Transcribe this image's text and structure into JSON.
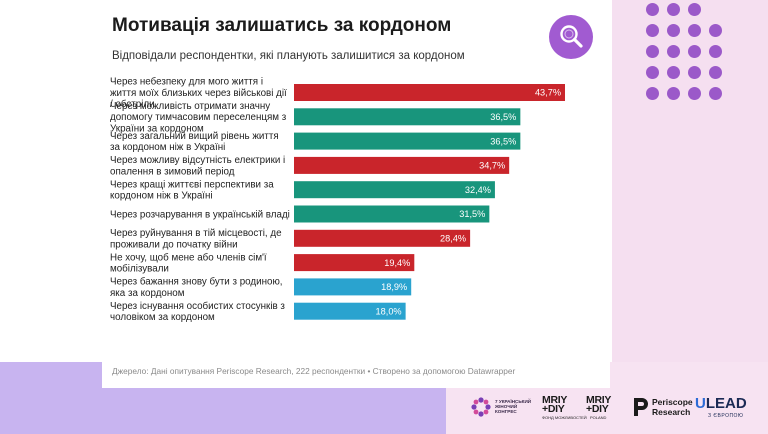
{
  "header": {
    "title": "Мотивація залишатись за кордоном",
    "subtitle": "Відповідали респондентки, які планують залишитися за кордоном"
  },
  "chart_data": {
    "type": "bar",
    "orientation": "horizontal",
    "xlim": [
      0,
      43.7
    ],
    "categories": [
      [
        "Через небезпеку для мого життя і",
        "життя моїх близьких через військові дії",
        "/ обстріли"
      ],
      [
        "Через можливість отримати значну",
        "допомогу тимчасовим переселенцям з",
        "України за кордоном"
      ],
      [
        "Через загальний вищий рівень життя",
        "за кордоном ніж в Україні"
      ],
      [
        "Через можливу відсутність електрики і",
        "опалення в зимовий період"
      ],
      [
        "Через кращі життєві перспективи за",
        "кордоном ніж в Україні"
      ],
      [
        "Через розчарування в українській владі"
      ],
      [
        "Через руйнування в тій місцевості, де",
        "проживали до початку війни"
      ],
      [
        "Не хочу, щоб мене або членів сім'ї",
        "мобілізували"
      ],
      [
        "Через бажання знову бути з родиною,",
        "яка за кордоном"
      ],
      [
        "Через існування особистих стосунків з",
        "чоловіком за кордоном"
      ]
    ],
    "values": [
      43.7,
      36.5,
      36.5,
      34.7,
      32.4,
      31.5,
      28.4,
      19.4,
      18.9,
      18.0
    ],
    "value_labels": [
      "43,7%",
      "36,5%",
      "36,5%",
      "34,7%",
      "32,4%",
      "31,5%",
      "28,4%",
      "19,4%",
      "18,9%",
      "18,0%"
    ],
    "bar_colors": [
      "#c9252b",
      "#18957c",
      "#18957c",
      "#c9252b",
      "#18957c",
      "#18957c",
      "#c9252b",
      "#c9252b",
      "#2aa3cf",
      "#2aa3cf"
    ]
  },
  "source_text": "Джерело: Дані опитування Periscope Research, 222 респондентки • Створено за допомогою Datawrapper",
  "logos": {
    "congress_text": [
      "7 УКРАЇНСЬКИЙ",
      "ЖІНОЧИЙ",
      "КОНГРЕС"
    ],
    "mriy1": [
      "MRIY",
      "+DIY"
    ],
    "mriy1_sub": "ФОНД МОЖЛИВОСТЕЙ",
    "mriy2": [
      "MRIY",
      "+DIY"
    ],
    "mriy2_sub": "POLAND",
    "periscope": [
      "Periscope",
      "Research"
    ],
    "ulead": "LEAD",
    "ulead_sub": "З ЄВРОПОЮ"
  },
  "colors": {
    "accent_purple": "#a15bd1",
    "red": "#c9252b",
    "green": "#18957c",
    "blue": "#2aa3cf"
  },
  "icons": [
    "search-icon",
    "decorative-dot-grid",
    "congress-flower-logo",
    "periscope-logo"
  ]
}
